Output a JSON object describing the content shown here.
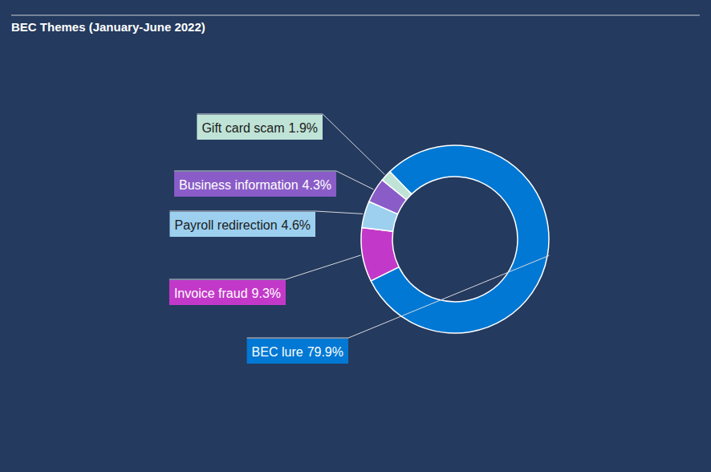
{
  "chart_data": {
    "type": "pie",
    "title": "BEC Themes (January-June 2022)",
    "categories": [
      "BEC lure",
      "Invoice fraud",
      "Payroll redirection",
      "Business information",
      "Gift card scam"
    ],
    "values": [
      79.9,
      9.3,
      4.6,
      4.3,
      1.9
    ],
    "value_labels": [
      "79.9%",
      "9.3%",
      "4.6%",
      "4.3%",
      "1.9%"
    ],
    "colors": [
      "#0078d4",
      "#c239c9",
      "#9dd0ef",
      "#8a5cc8",
      "#bfe3d6"
    ],
    "data_labels": true
  }
}
